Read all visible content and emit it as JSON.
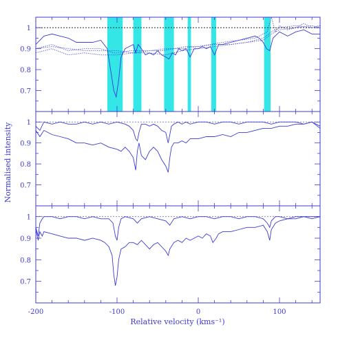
{
  "figure": {
    "xlabel": "Relative velocity (kms⁻¹)",
    "ylabel": "Normalised intensity",
    "axis_color": "#3a3ad6",
    "line_color": "#3a3ad6",
    "highlight_color": "#29e5e5",
    "spectrum_highlight_color": "#1fb8c4"
  },
  "chart_data": [
    {
      "type": "line",
      "panel": "top",
      "xlim": [
        -200,
        150
      ],
      "ylim": [
        0.6,
        1.05
      ],
      "x_ticks": [
        -200,
        -100,
        0,
        100
      ],
      "y_ticks": [
        0.7,
        0.8,
        0.9,
        1
      ],
      "y_tick_labels": [
        "0.7",
        "0.8",
        "0.9",
        "1"
      ],
      "reference_line": 1.0,
      "highlight_bands": [
        [
          -112,
          -93
        ],
        [
          -80,
          -70
        ],
        [
          -42,
          -30
        ],
        [
          -13,
          -9
        ],
        [
          16,
          22
        ],
        [
          81,
          89
        ]
      ],
      "series": [
        {
          "style": "solid",
          "x": [
            -200,
            -190,
            -180,
            -170,
            -160,
            -150,
            -140,
            -130,
            -120,
            -112,
            -108,
            -104,
            -101,
            -98,
            -95,
            -90,
            -85,
            -80,
            -77,
            -74,
            -70,
            -65,
            -60,
            -55,
            -50,
            -45,
            -40,
            -36,
            -32,
            -28,
            -24,
            -20,
            -15,
            -10,
            -5,
            0,
            5,
            10,
            15,
            20,
            25,
            30,
            40,
            50,
            60,
            70,
            75,
            80,
            84,
            88,
            92,
            100,
            110,
            120,
            130,
            140,
            150
          ],
          "y": [
            0.92,
            0.96,
            0.97,
            0.96,
            0.95,
            0.93,
            0.93,
            0.93,
            0.94,
            0.9,
            0.8,
            0.7,
            0.67,
            0.75,
            0.86,
            0.9,
            0.91,
            0.92,
            0.88,
            0.92,
            0.9,
            0.87,
            0.88,
            0.87,
            0.89,
            0.87,
            0.86,
            0.85,
            0.88,
            0.87,
            0.9,
            0.89,
            0.9,
            0.86,
            0.9,
            0.9,
            0.91,
            0.9,
            0.91,
            0.87,
            0.92,
            0.92,
            0.93,
            0.94,
            0.95,
            0.96,
            0.95,
            0.93,
            0.9,
            0.89,
            0.95,
            0.98,
            0.96,
            0.98,
            0.99,
            0.97,
            0.97
          ]
        },
        {
          "style": "dotted",
          "x": [
            -200,
            -180,
            -160,
            -140,
            -120,
            -105,
            -95,
            -85,
            -75,
            -60,
            -45,
            -30,
            -15,
            0,
            15,
            30,
            50,
            70,
            85,
            90,
            95,
            100,
            110,
            120,
            130,
            140,
            150
          ],
          "y": [
            0.9,
            0.92,
            0.89,
            0.9,
            0.9,
            0.88,
            0.88,
            0.89,
            0.89,
            0.89,
            0.89,
            0.9,
            0.91,
            0.91,
            0.92,
            0.93,
            0.94,
            0.95,
            0.98,
            1.05,
            0.98,
            1.01,
            0.99,
            1.0,
            1.02,
            1.0,
            1.01
          ]
        },
        {
          "style": "dotted",
          "x": [
            -200,
            -180,
            -160,
            -140,
            -120,
            -100,
            -80,
            -60,
            -40,
            -20,
            0,
            20,
            40,
            60,
            80,
            90,
            100,
            120,
            140,
            150
          ],
          "y": [
            0.88,
            0.9,
            0.87,
            0.88,
            0.87,
            0.87,
            0.88,
            0.88,
            0.87,
            0.89,
            0.9,
            0.91,
            0.92,
            0.93,
            0.94,
            0.97,
            0.99,
            1.0,
            1.01,
            1.0
          ]
        },
        {
          "style": "dotted",
          "x": [
            -200,
            -180,
            -160,
            -140,
            -120,
            -100,
            -80,
            -60,
            -40,
            -20,
            0,
            20,
            40,
            60,
            80,
            90,
            100,
            120,
            140,
            150
          ],
          "y": [
            0.9,
            0.91,
            0.9,
            0.89,
            0.89,
            0.89,
            0.88,
            0.89,
            0.9,
            0.9,
            0.91,
            0.92,
            0.92,
            0.93,
            0.95,
            0.98,
            1.0,
            1.01,
            1.0,
            1.01
          ]
        }
      ]
    },
    {
      "type": "line",
      "panel": "middle",
      "xlim": [
        -200,
        150
      ],
      "ylim": [
        0.6,
        1.05
      ],
      "x_ticks": [
        -200,
        -100,
        0,
        100
      ],
      "y_ticks": [
        0.7,
        0.8,
        0.9,
        1
      ],
      "y_tick_labels": [
        "0.7",
        "0.8",
        "0.9",
        "1"
      ],
      "reference_line": 1.0,
      "series": [
        {
          "style": "solid",
          "x": [
            -200,
            -195,
            -190,
            -180,
            -170,
            -160,
            -150,
            -140,
            -130,
            -120,
            -110,
            -100,
            -90,
            -85,
            -80,
            -77,
            -75,
            -73,
            -70,
            -65,
            -60,
            -55,
            -50,
            -45,
            -40,
            -37,
            -35,
            -33,
            -30,
            -25,
            -20,
            -15,
            -10,
            0,
            10,
            20,
            30,
            40,
            50,
            60,
            70,
            80,
            90,
            100,
            110,
            120,
            130,
            140,
            150
          ],
          "y": [
            0.98,
            0.96,
            1.0,
            0.99,
            1.0,
            0.99,
            0.99,
            1.0,
            0.99,
            1.0,
            0.99,
            1.0,
            0.99,
            0.98,
            0.96,
            0.92,
            0.91,
            0.95,
            0.99,
            0.99,
            0.98,
            0.99,
            0.98,
            0.96,
            0.95,
            0.9,
            0.94,
            0.98,
            0.99,
            1.0,
            0.99,
            1.0,
            0.99,
            1.0,
            1.0,
            0.99,
            1.0,
            1.0,
            0.99,
            1.0,
            1.0,
            1.0,
            0.99,
            1.0,
            1.0,
            1.0,
            0.99,
            1.0,
            0.97
          ]
        },
        {
          "style": "solid",
          "x": [
            -200,
            -195,
            -190,
            -180,
            -170,
            -160,
            -150,
            -140,
            -130,
            -120,
            -110,
            -100,
            -95,
            -90,
            -85,
            -80,
            -77,
            -75,
            -73,
            -70,
            -65,
            -60,
            -55,
            -50,
            -45,
            -40,
            -37,
            -35,
            -33,
            -30,
            -25,
            -20,
            -15,
            -10,
            0,
            10,
            20,
            30,
            40,
            50,
            60,
            70,
            80,
            90,
            100,
            110,
            120,
            130,
            140,
            150
          ],
          "y": [
            0.96,
            0.93,
            0.96,
            0.94,
            0.93,
            0.92,
            0.9,
            0.9,
            0.89,
            0.9,
            0.88,
            0.87,
            0.86,
            0.88,
            0.86,
            0.83,
            0.77,
            0.86,
            0.9,
            0.84,
            0.82,
            0.86,
            0.88,
            0.86,
            0.82,
            0.79,
            0.76,
            0.83,
            0.88,
            0.9,
            0.9,
            0.91,
            0.9,
            0.92,
            0.92,
            0.93,
            0.93,
            0.94,
            0.93,
            0.95,
            0.95,
            0.96,
            0.97,
            0.97,
            0.98,
            0.98,
            0.99,
            0.99,
            1.0,
            0.98
          ]
        }
      ]
    },
    {
      "type": "line",
      "panel": "bottom",
      "xlim": [
        -200,
        150
      ],
      "ylim": [
        0.6,
        1.05
      ],
      "x_ticks": [
        -200,
        -100,
        0,
        100
      ],
      "x_tick_labels": [
        "-200",
        "-100",
        "0",
        "100"
      ],
      "y_ticks": [
        0.7,
        0.8,
        0.9,
        1
      ],
      "y_tick_labels": [
        "0.7",
        "0.8",
        "0.9",
        "1"
      ],
      "reference_line": 1.0,
      "series": [
        {
          "style": "solid",
          "x": [
            -200,
            -197,
            -195,
            -192,
            -190,
            -180,
            -170,
            -160,
            -150,
            -140,
            -130,
            -120,
            -110,
            -105,
            -102,
            -100,
            -98,
            -95,
            -90,
            -80,
            -75,
            -70,
            -60,
            -50,
            -40,
            -35,
            -30,
            -20,
            -10,
            0,
            10,
            20,
            30,
            40,
            50,
            60,
            70,
            80,
            85,
            88,
            90,
            95,
            100,
            110,
            120,
            130,
            140,
            150
          ],
          "y": [
            0.95,
            0.91,
            0.97,
            0.99,
            1.0,
            1.0,
            0.99,
            1.0,
            1.0,
            0.99,
            1.0,
            0.99,
            0.99,
            0.97,
            0.91,
            0.89,
            0.95,
            0.99,
            1.0,
            0.99,
            0.97,
            0.99,
            1.0,
            0.99,
            0.98,
            0.96,
            0.99,
            1.0,
            0.99,
            1.0,
            1.0,
            0.99,
            1.0,
            1.0,
            0.99,
            1.0,
            1.0,
            0.99,
            0.97,
            0.95,
            0.98,
            1.0,
            1.0,
            0.99,
            1.0,
            1.0,
            0.99,
            1.0
          ]
        },
        {
          "style": "solid",
          "x": [
            -200,
            -197,
            -195,
            -192,
            -190,
            -180,
            -170,
            -160,
            -150,
            -140,
            -130,
            -120,
            -115,
            -110,
            -106,
            -104,
            -102,
            -100,
            -98,
            -95,
            -90,
            -85,
            -80,
            -75,
            -70,
            -65,
            -60,
            -55,
            -50,
            -45,
            -40,
            -37,
            -35,
            -30,
            -25,
            -20,
            -15,
            -10,
            -5,
            0,
            5,
            10,
            15,
            18,
            22,
            25,
            30,
            40,
            50,
            60,
            70,
            80,
            85,
            88,
            90,
            95,
            100,
            110,
            120,
            130,
            140,
            150
          ],
          "y": [
            0.94,
            0.89,
            0.93,
            0.91,
            0.93,
            0.92,
            0.91,
            0.9,
            0.9,
            0.89,
            0.9,
            0.89,
            0.88,
            0.86,
            0.82,
            0.73,
            0.68,
            0.72,
            0.8,
            0.85,
            0.86,
            0.88,
            0.88,
            0.87,
            0.89,
            0.87,
            0.85,
            0.87,
            0.88,
            0.86,
            0.84,
            0.82,
            0.85,
            0.88,
            0.89,
            0.88,
            0.9,
            0.89,
            0.9,
            0.91,
            0.9,
            0.92,
            0.91,
            0.88,
            0.9,
            0.92,
            0.93,
            0.93,
            0.94,
            0.95,
            0.95,
            0.96,
            0.93,
            0.89,
            0.94,
            0.97,
            0.98,
            0.99,
            0.99,
            1.0,
            1.0,
            1.0
          ]
        }
      ]
    }
  ]
}
